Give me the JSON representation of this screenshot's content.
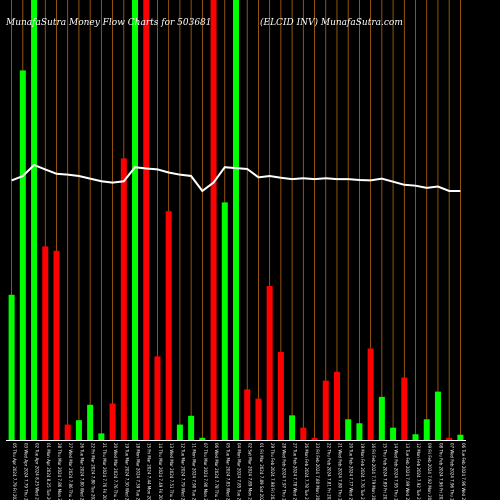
{
  "chart_data": {
    "type": "bar",
    "title_left": "MunafaSutra  Money Flow  Charts for 503681",
    "title_right": "(ELCID INV) MunafaSutra.com",
    "colors": {
      "background": "#000000",
      "up": "#00ff00",
      "down": "#ff0000",
      "line": "#ffffff",
      "grid": "#b8680f"
    },
    "grid": true,
    "ylim": [
      0,
      100
    ],
    "categories": [
      "05 Thu Apr 2024 7.79 Fri 2024",
      "03 Wed Apr 2024 7.79 Thu 2024",
      "02 Tue Apr 2024 8.25 Wed 2024",
      "01 Mon Apr 2024 8.25 Tue 2024",
      "28 Thu Mar 2024 7.86 Mon 2024",
      "27 Wed Mar 2024 7.86 Thu 2024",
      "26 Tue Mar 2024 7.80 Wed 2024",
      "22 Fri Mar 2024 7.80 Tue 2024",
      "21 Thu Mar 2024 7.76 Fri 2024",
      "20 Wed Mar 2024 7.76 Thu 2024",
      "19 Tue Mar 2024 7.30 Wed 2024",
      "18 Mon Mar 2024 7.39 Tue 2024",
      "15 Fri Mar 2024 7.44 Mon 2024",
      "14 Thu Mar 2024 7.49 Fri 2024",
      "13 Wed Mar 2024 7.51 Thu 2024",
      "12 Tue Mar 2024 7.79 Wed 2024",
      "11 Mon Mar 2024 7.90 Tue 2024",
      "07 Thu Mar 2024 7.90 Mon 2024",
      "06 Wed Mar 2024 7.78 Thu 2024",
      "05 Tue Mar 2024 7.83 Wed 2024",
      "04 Mon Mar 2024 7.85 Tue 2024",
      "02 Sat Mar 2024 7.89 Mon 2024",
      "01 Fri Mar 2024 7.89 Sat 2024",
      "29 Thu Feb 2024 7.98 Fri 2024",
      "28 Wed Feb 2024 7.97 Thu 2024",
      "27 Tue Feb 2024 7.78 Wed 2024",
      "26 Mon Feb 2024 7.78 Tue 2024",
      "23 Fri Feb 2024 7.80 Mon 2024",
      "22 Thu Feb 2024 7.81 Fri 2024",
      "21 Wed Feb 2024 7.80 Thu 2024",
      "20 Tue Feb 2024 7.77 Wed 2024",
      "19 Mon Feb 2024 7.76 Tue 2024",
      "16 Fri Feb 2024 7.79 Mon 2024",
      "15 Thu Feb 2024 7.89 Fri 2024",
      "14 Wed Feb 2024 7.95 Thu 2024",
      "13 Tue Feb 2024 7.99 Wed 2024",
      "12 Mon Feb 2024 7.92 Tue 2024",
      "09 Fri Feb 2024 7.92 Mon 2024",
      "08 Thu Feb 2024 7.96 Fri 2024",
      "07 Wed Feb 2024 7.96 Thu 2024",
      "06 Tue Feb 2024 7.96 Wed 2024"
    ],
    "bars": [
      {
        "v": 33,
        "c": "up"
      },
      {
        "v": 84,
        "c": "up"
      },
      {
        "v": 100,
        "c": "up"
      },
      {
        "v": 44,
        "c": "down"
      },
      {
        "v": 43,
        "c": "down"
      },
      {
        "v": 3.5,
        "c": "down"
      },
      {
        "v": 4.5,
        "c": "up"
      },
      {
        "v": 8,
        "c": "up"
      },
      {
        "v": 1.5,
        "c": "up"
      },
      {
        "v": 8.3,
        "c": "down"
      },
      {
        "v": 64,
        "c": "down"
      },
      {
        "v": 100,
        "c": "up"
      },
      {
        "v": 100,
        "c": "down"
      },
      {
        "v": 19,
        "c": "down"
      },
      {
        "v": 52,
        "c": "down"
      },
      {
        "v": 3.5,
        "c": "up"
      },
      {
        "v": 5.5,
        "c": "up"
      },
      {
        "v": 0.5,
        "c": "up"
      },
      {
        "v": 100,
        "c": "down"
      },
      {
        "v": 54,
        "c": "up"
      },
      {
        "v": 100,
        "c": "up"
      },
      {
        "v": 11.5,
        "c": "down"
      },
      {
        "v": 9.4,
        "c": "down"
      },
      {
        "v": 35,
        "c": "down"
      },
      {
        "v": 20,
        "c": "down"
      },
      {
        "v": 5.6,
        "c": "up"
      },
      {
        "v": 2.8,
        "c": "down"
      },
      {
        "v": 0.5,
        "c": "down"
      },
      {
        "v": 13.5,
        "c": "down"
      },
      {
        "v": 15.5,
        "c": "down"
      },
      {
        "v": 4.7,
        "c": "up"
      },
      {
        "v": 3.8,
        "c": "up"
      },
      {
        "v": 20.8,
        "c": "down"
      },
      {
        "v": 9.8,
        "c": "up"
      },
      {
        "v": 2.8,
        "c": "up"
      },
      {
        "v": 14.2,
        "c": "down"
      },
      {
        "v": 1.3,
        "c": "up"
      },
      {
        "v": 4.7,
        "c": "up"
      },
      {
        "v": 11,
        "c": "up"
      },
      {
        "v": 0.5,
        "c": "down"
      },
      {
        "v": 1.2,
        "c": "up"
      }
    ],
    "line": [
      59,
      60,
      62.5,
      61.5,
      60.5,
      60.3,
      60,
      59.4,
      58.8,
      58.5,
      58.8,
      62,
      61.7,
      61.5,
      60.8,
      60.3,
      60,
      56.6,
      58.5,
      62,
      61.8,
      61.6,
      59.7,
      60,
      59.6,
      59.3,
      59.5,
      59.3,
      59.5,
      59.3,
      59.3,
      59.1,
      59.0,
      59.4,
      58.7,
      58.0,
      57.8,
      57.3,
      57.6,
      56.6,
      56.6
    ]
  }
}
